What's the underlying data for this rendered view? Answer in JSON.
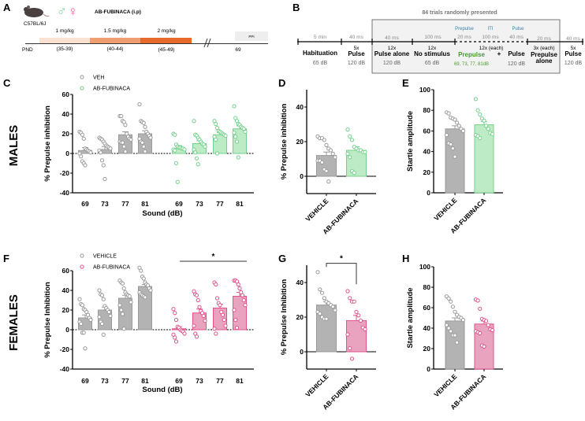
{
  "colors": {
    "vehicle_fill": "#b3b3b3",
    "vehicle_stroke": "#9a9a9a",
    "male_fill": "#bdebc5",
    "male_stroke": "#74d18c",
    "female_fill": "#e9a3bf",
    "female_stroke": "#e0528c",
    "prepulse_blue": "#3a7fa8",
    "prepulse_green": "#4a9a2a"
  },
  "panel_letters": {
    "a": "A",
    "b": "B",
    "c": "C",
    "d": "D",
    "e": "E",
    "f": "F",
    "g": "G",
    "h": "H"
  },
  "row_labels": {
    "males": "MALES",
    "females": "FEMALES"
  },
  "panel_a": {
    "title": "AB-FUBINACA (i.p)",
    "strain": "C57BL/6J",
    "male_symbol": "♂",
    "female_symbol": "♀",
    "doses": [
      {
        "label": "1 mg/kg",
        "pnd": "(35-39)"
      },
      {
        "label": "1.5 mg/kg",
        "pnd": "(40-44)"
      },
      {
        "label": "2 mg/kg",
        "pnd": "(45-49)"
      }
    ],
    "pnd_label": "PND",
    "test_pnd": "69",
    "test_label": "PPI"
  },
  "panel_b": {
    "box_title": "84 trials randomly presented",
    "durations": [
      "5 min",
      "40 ms",
      "40 ms",
      "100 ms",
      "20 ms",
      "100 ms",
      "40 ms",
      "20 ms",
      "40 ms"
    ],
    "blue_labels": [
      "Prepulse",
      "ITI",
      "Pulse"
    ],
    "blocks": [
      {
        "count": "",
        "name": "Habituation",
        "db": "65 dB"
      },
      {
        "count": "5x",
        "name": "Pulse",
        "db": "120 dB"
      },
      {
        "count": "12x",
        "name": "Pulse alone",
        "db": "120 dB"
      },
      {
        "count": "12x",
        "name": "No stimulus",
        "db": "65 dB"
      },
      {
        "count": "3x (each)",
        "name": "Prepulse",
        "name2": "alone",
        "db": ""
      },
      {
        "count": "5x",
        "name": "Pulse",
        "db": "120 dB"
      }
    ],
    "ppi_block": {
      "count": "12x (each)",
      "prepulse": "Prepulse",
      "plus": "+",
      "pulse": "Pulse",
      "prepulse_db": "69, 73, 77, 81dB",
      "pulse_db": "120 dB"
    }
  },
  "chart_data": [
    {
      "id": "C",
      "type": "bar",
      "sex": "males",
      "ylabel": "% Prepulse inhibition",
      "xlabel": "Sound (dB)",
      "ylim": [
        -40,
        60
      ],
      "yticks": [
        -40,
        -20,
        0,
        20,
        40,
        60
      ],
      "legend": [
        {
          "label": "VEH",
          "color": "#9a9a9a"
        },
        {
          "label": "AB-FUBINACA",
          "color": "#74d18c"
        }
      ],
      "legend_placement": "top-left",
      "categories": [
        "69",
        "73",
        "77",
        "81",
        "69",
        "73",
        "77",
        "81"
      ],
      "groups": [
        {
          "treatment": "VEH",
          "mean": 3,
          "sem": 3,
          "points": [
            22,
            21,
            19,
            15,
            5,
            4,
            3,
            2,
            1,
            0,
            -3,
            -8,
            -10,
            -12
          ]
        },
        {
          "treatment": "VEH",
          "mean": 4,
          "sem": 3,
          "points": [
            16,
            15,
            14,
            12,
            10,
            8,
            7,
            6,
            5,
            3,
            1,
            -7,
            -12,
            -26
          ]
        },
        {
          "treatment": "VEH",
          "mean": 19,
          "sem": 3,
          "points": [
            38,
            38,
            33,
            32,
            29,
            20,
            17,
            15,
            14,
            12,
            11,
            11,
            7,
            2
          ]
        },
        {
          "treatment": "VEH",
          "mean": 20,
          "sem": 3,
          "points": [
            50,
            33,
            32,
            31,
            27,
            22,
            20,
            18,
            16,
            15,
            12,
            11,
            7,
            2
          ]
        },
        {
          "treatment": "AB-FUBINACA",
          "mean": 5,
          "sem": 3,
          "points": [
            20,
            19,
            9,
            7,
            6,
            6,
            5,
            5,
            4,
            4,
            3,
            -10,
            -29
          ]
        },
        {
          "treatment": "AB-FUBINACA",
          "mean": 10,
          "sem": 3,
          "points": [
            33,
            19,
            18,
            16,
            14,
            12,
            10,
            9,
            7,
            4,
            1,
            -5,
            -11
          ]
        },
        {
          "treatment": "AB-FUBINACA",
          "mean": 19,
          "sem": 2,
          "points": [
            33,
            30,
            26,
            23,
            22,
            21,
            20,
            19,
            18,
            17,
            14,
            0
          ]
        },
        {
          "treatment": "AB-FUBINACA",
          "mean": 25,
          "sem": 3,
          "points": [
            48,
            36,
            33,
            30,
            29,
            27,
            26,
            25,
            22,
            21,
            17,
            12,
            -4
          ]
        }
      ]
    },
    {
      "id": "D",
      "type": "bar",
      "sex": "males",
      "ylabel": "% Prepulse inhibition",
      "ylim": [
        -10,
        50
      ],
      "yticks": [
        0,
        20,
        40
      ],
      "categories": [
        "VEHICLE",
        "AB-FUBINACA"
      ],
      "groups": [
        {
          "treatment": "VEHICLE",
          "mean": 12,
          "sem": 2,
          "points": [
            23,
            22,
            22,
            21,
            18,
            16,
            15,
            13,
            11,
            9,
            9,
            8,
            4,
            3,
            -3
          ]
        },
        {
          "treatment": "AB-FUBINACA",
          "mean": 15,
          "sem": 2,
          "points": [
            27,
            23,
            21,
            17,
            16,
            15,
            15,
            14,
            14,
            13,
            11,
            3,
            2
          ]
        }
      ]
    },
    {
      "id": "E",
      "type": "bar",
      "sex": "males",
      "ylabel": "Startle amplitude",
      "ylim": [
        0,
        100
      ],
      "yticks": [
        0,
        20,
        40,
        60,
        80,
        100
      ],
      "categories": [
        "VEHICLE",
        "AB-FUBINACA"
      ],
      "groups": [
        {
          "treatment": "VEHICLE",
          "mean": 62,
          "sem": 3,
          "points": [
            78,
            77,
            73,
            72,
            71,
            68,
            65,
            62,
            60,
            56,
            48,
            47,
            43,
            35
          ]
        },
        {
          "treatment": "AB-FUBINACA",
          "mean": 66,
          "sem": 3,
          "points": [
            91,
            80,
            76,
            72,
            70,
            65,
            62,
            58,
            57,
            56,
            55,
            53
          ]
        }
      ]
    },
    {
      "id": "F",
      "type": "bar",
      "sex": "females",
      "ylabel": "% Prepulse Inhibition",
      "xlabel": "Sound (dB)",
      "ylim": [
        -40,
        60
      ],
      "yticks": [
        -40,
        -20,
        0,
        20,
        40,
        60
      ],
      "legend": [
        {
          "label": "VEHICLE",
          "color": "#9a9a9a"
        },
        {
          "label": "AB-FUBINACA",
          "color": "#e0528c"
        }
      ],
      "legend_placement": "top-left",
      "significance": "*",
      "categories": [
        "69",
        "73",
        "77",
        "81",
        "69",
        "73",
        "77",
        "81"
      ],
      "groups": [
        {
          "treatment": "VEHICLE",
          "mean": 12,
          "sem": 3,
          "points": [
            31,
            26,
            25,
            21,
            20,
            18,
            15,
            12,
            10,
            8,
            6,
            -3,
            -3,
            -19
          ]
        },
        {
          "treatment": "VEHICLE",
          "mean": 20,
          "sem": 3,
          "points": [
            40,
            36,
            35,
            31,
            24,
            22,
            20,
            18,
            14,
            13,
            8,
            6,
            -5
          ]
        },
        {
          "treatment": "VEHICLE",
          "mean": 32,
          "sem": 3,
          "points": [
            50,
            48,
            47,
            42,
            38,
            36,
            35,
            34,
            28,
            25,
            20,
            16,
            1
          ]
        },
        {
          "treatment": "VEHICLE",
          "mean": 44,
          "sem": 2,
          "points": [
            63,
            60,
            54,
            52,
            48,
            46,
            45,
            42,
            40,
            38,
            36,
            35,
            34,
            33
          ]
        },
        {
          "treatment": "AB-FUBINACA",
          "mean": 1,
          "sem": 2,
          "points": [
            21,
            17,
            10,
            3,
            2,
            0,
            -1,
            -2,
            -4,
            -5,
            -8,
            -12
          ]
        },
        {
          "treatment": "AB-FUBINACA",
          "mean": 17,
          "sem": 4,
          "points": [
            39,
            36,
            35,
            30,
            23,
            19,
            17,
            14,
            9,
            4,
            -4,
            -7
          ]
        },
        {
          "treatment": "AB-FUBINACA",
          "mean": 22,
          "sem": 4,
          "points": [
            48,
            46,
            32,
            27,
            25,
            18,
            15,
            10,
            4,
            1,
            -4
          ]
        },
        {
          "treatment": "AB-FUBINACA",
          "mean": 34,
          "sem": 4,
          "points": [
            50,
            50,
            49,
            46,
            42,
            38,
            35,
            30,
            25,
            20,
            10,
            2
          ]
        }
      ]
    },
    {
      "id": "G",
      "type": "bar",
      "sex": "females",
      "ylabel": "% Prepulse Inhibition",
      "ylim": [
        -10,
        50
      ],
      "yticks": [
        0,
        20,
        40
      ],
      "significance": "*",
      "categories": [
        "VEHICLE",
        "AB-FUBINACA"
      ],
      "groups": [
        {
          "treatment": "VEHICLE",
          "mean": 27,
          "sem": 2,
          "points": [
            46,
            36,
            34,
            31,
            29,
            28,
            27,
            26,
            24,
            23,
            22,
            20,
            19,
            19
          ]
        },
        {
          "treatment": "AB-FUBINACA",
          "mean": 18,
          "sem": 3,
          "points": [
            35,
            31,
            29,
            29,
            23,
            21,
            18,
            14,
            13,
            10,
            2,
            -4
          ]
        }
      ]
    },
    {
      "id": "H",
      "type": "bar",
      "sex": "females",
      "ylabel": "Startle amplitude",
      "ylim": [
        0,
        100
      ],
      "yticks": [
        0,
        20,
        40,
        60,
        80,
        100
      ],
      "categories": [
        "VEHICLE",
        "AB-FUBINACA"
      ],
      "groups": [
        {
          "treatment": "VEHICLE",
          "mean": 47,
          "sem": 3,
          "points": [
            71,
            69,
            66,
            61,
            56,
            53,
            51,
            50,
            48,
            43,
            40,
            37,
            33,
            33,
            26
          ]
        },
        {
          "treatment": "AB-FUBINACA",
          "mean": 44,
          "sem": 3,
          "points": [
            68,
            67,
            59,
            49,
            48,
            47,
            43,
            39,
            38,
            37,
            36,
            35,
            23,
            22
          ]
        }
      ]
    }
  ]
}
